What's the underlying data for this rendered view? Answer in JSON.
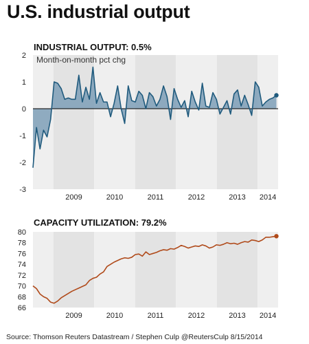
{
  "page": {
    "title": "U.S. industrial output",
    "source": "Source: Thomson Reuters Datastream / Stephen Culp @ReutersCulp 8/15/2014"
  },
  "colors": {
    "band_dark": "#e3e3e3",
    "band_light": "#efefef",
    "output_line": "#1f5a7d",
    "output_fill": "#7e9fb7",
    "capacity_line": "#b04a1a"
  },
  "chart_data": [
    {
      "type": "area",
      "title": "INDUSTRIAL OUTPUT: 0.5%",
      "subtitle": "Month-on-month pct chg",
      "xlabel": "",
      "ylabel": "",
      "ylim": [
        -3,
        2
      ],
      "yticks": [
        "2",
        "1",
        "0",
        "-1",
        "-2",
        "-3"
      ],
      "x_tick_labels": [
        "2009",
        "2010",
        "2011",
        "2012",
        "2013",
        "2014"
      ],
      "x_start": "2008-07",
      "x_end": "2014-07",
      "grid": false,
      "values": [
        -2.2,
        -0.7,
        -1.5,
        -0.8,
        -1.05,
        -0.4,
        1.0,
        0.95,
        0.75,
        0.35,
        0.4,
        0.35,
        0.35,
        1.25,
        0.25,
        0.8,
        0.35,
        1.55,
        0.2,
        0.6,
        0.25,
        0.25,
        -0.3,
        0.2,
        0.85,
        0.0,
        -0.55,
        0.85,
        0.3,
        0.25,
        0.65,
        0.5,
        0.0,
        0.6,
        0.45,
        0.1,
        0.35,
        0.85,
        0.45,
        -0.4,
        0.75,
        0.35,
        0.05,
        0.3,
        -0.3,
        0.65,
        0.25,
        -0.05,
        0.95,
        0.1,
        0.05,
        0.6,
        0.35,
        -0.2,
        0.05,
        0.3,
        -0.2,
        0.55,
        0.7,
        0.1,
        0.5,
        0.15,
        -0.25,
        1.0,
        0.8,
        0.1,
        0.25,
        0.35,
        0.4,
        0.5
      ]
    },
    {
      "type": "line",
      "title": "CAPACITY UTILIZATION: 79.2%",
      "xlabel": "",
      "ylabel": "",
      "ylim": [
        66,
        80
      ],
      "yticks": [
        "80",
        "78",
        "76",
        "74",
        "72",
        "70",
        "68",
        "66"
      ],
      "x_tick_labels": [
        "2009",
        "2010",
        "2011",
        "2012",
        "2013",
        "2014"
      ],
      "x_start": "2008-07",
      "x_end": "2014-07",
      "grid": false,
      "values": [
        70.0,
        69.5,
        68.5,
        68.0,
        67.7,
        67.0,
        66.8,
        67.2,
        67.8,
        68.2,
        68.6,
        69.0,
        69.3,
        69.6,
        69.9,
        70.2,
        71.0,
        71.4,
        71.6,
        72.2,
        72.6,
        73.6,
        74.0,
        74.4,
        74.7,
        75.0,
        75.2,
        75.1,
        75.3,
        75.8,
        75.9,
        75.5,
        76.3,
        75.8,
        76.0,
        76.2,
        76.5,
        76.7,
        76.6,
        76.9,
        76.8,
        77.1,
        77.5,
        77.3,
        77.0,
        77.2,
        77.4,
        77.3,
        77.6,
        77.4,
        77.0,
        77.2,
        77.6,
        77.5,
        77.7,
        78.0,
        77.8,
        77.9,
        77.7,
        78.0,
        78.2,
        78.1,
        78.5,
        78.4,
        78.2,
        78.5,
        79.0,
        79.0,
        79.1,
        79.2
      ]
    }
  ]
}
